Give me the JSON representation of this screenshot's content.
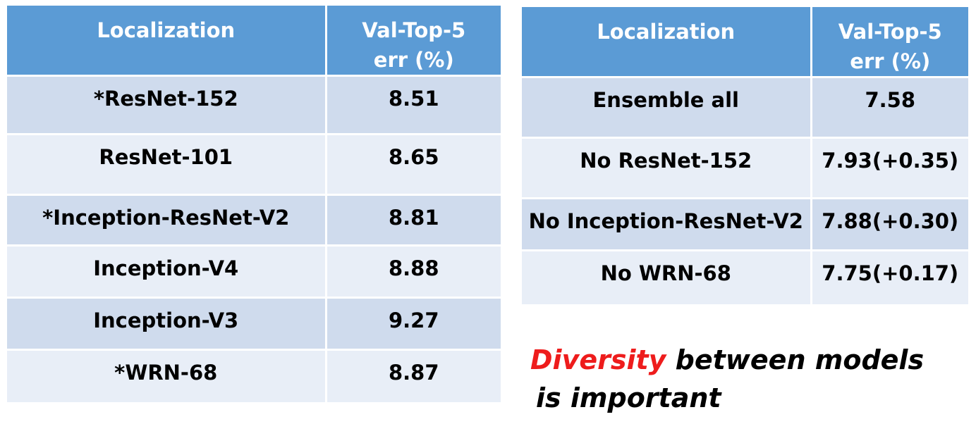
{
  "left_table": {
    "header": {
      "col1": "Localization",
      "col2_line1": "Val-Top-5",
      "col2_line2": "err (%)"
    },
    "rows": [
      {
        "model": "*ResNet-152",
        "err": "8.51"
      },
      {
        "model": "ResNet-101",
        "err": "8.65"
      },
      {
        "model": "*Inception-ResNet-V2",
        "err": "8.81"
      },
      {
        "model": "Inception-V4",
        "err": "8.88"
      },
      {
        "model": "Inception-V3",
        "err": "9.27"
      },
      {
        "model": "*WRN-68",
        "err": "8.87"
      }
    ]
  },
  "right_table": {
    "header": {
      "col1": "Localization",
      "col2_line1": "Val-Top-5",
      "col2_line2": "err (%)"
    },
    "rows": [
      {
        "model": "Ensemble all",
        "err": "7.58"
      },
      {
        "model": "No ResNet-152",
        "err": "7.93(+0.35)"
      },
      {
        "model": "No Inception-ResNet-V2",
        "err": "7.88(+0.30)"
      },
      {
        "model": "No WRN-68",
        "err": "7.75(+0.17)"
      }
    ]
  },
  "caption": {
    "accent": "Diversity",
    "line1_rest": " between models",
    "line2": "is important"
  },
  "colors": {
    "header_bg": "#5b9bd5",
    "row_dark": "#cfdbed",
    "row_light": "#e8eef7",
    "accent_red": "#ee1c1c"
  }
}
